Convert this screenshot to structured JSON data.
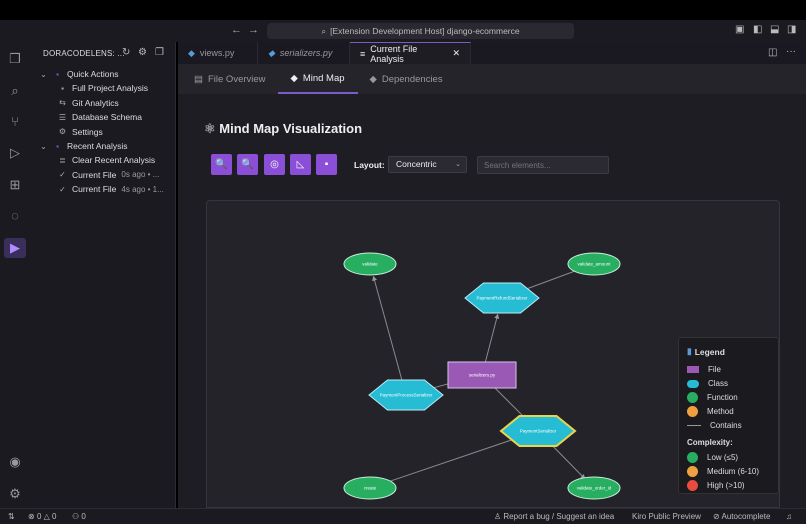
{
  "titlebar": {
    "command_center": "[Extension Development Host] django-ecommerce"
  },
  "sidebar": {
    "header": "DORACODELENS: ...",
    "items": [
      {
        "label": "Quick Actions",
        "icon": "chevron-down-icon",
        "level": 0
      },
      {
        "label": "Full Project Analysis",
        "icon": "chart-icon",
        "level": 1
      },
      {
        "label": "Git Analytics",
        "icon": "git-compare-icon",
        "level": 1
      },
      {
        "label": "Database Schema",
        "icon": "database-icon",
        "level": 1
      },
      {
        "label": "Settings",
        "icon": "gear-icon",
        "level": 1
      },
      {
        "label": "Recent Analysis",
        "icon": "chevron-down-icon",
        "level": 0
      },
      {
        "label": "Clear Recent Analysis",
        "icon": "clear-all-icon",
        "level": 1
      },
      {
        "label": "Current File",
        "meta": "0s ago • ...",
        "icon": "check-icon",
        "level": 1
      },
      {
        "label": "Current File",
        "meta": "4s ago • 1...",
        "icon": "check-icon",
        "level": 1
      }
    ]
  },
  "tabs": [
    {
      "label": "views.py",
      "active": false
    },
    {
      "label": "serializers.py",
      "active": false,
      "italic": true
    },
    {
      "label": "Current File Analysis",
      "active": true
    }
  ],
  "subtabs": [
    {
      "label": "File Overview"
    },
    {
      "label": "Mind Map",
      "active": true
    },
    {
      "label": "Dependencies"
    }
  ],
  "main": {
    "title": "Mind Map Visualization",
    "layout_label": "Layout:",
    "layout_value": "Concentric",
    "search_placeholder": "Search elements..."
  },
  "graph": {
    "nodes": [
      {
        "id": "file",
        "label": "serializers.py",
        "type": "file"
      },
      {
        "id": "prs",
        "label": "PaymentRefundSerializer",
        "type": "class"
      },
      {
        "id": "pps",
        "label": "PaymentProcessSerializer",
        "type": "class"
      },
      {
        "id": "ps",
        "label": "PaymentSerializer",
        "type": "class",
        "selected": true
      },
      {
        "id": "v",
        "label": "validate",
        "type": "function"
      },
      {
        "id": "va",
        "label": "validate_amount",
        "type": "function"
      },
      {
        "id": "c",
        "label": "create",
        "type": "function"
      },
      {
        "id": "vo",
        "label": "validate_order_id",
        "type": "function"
      }
    ],
    "edges": [
      [
        "file",
        "prs"
      ],
      [
        "file",
        "pps"
      ],
      [
        "file",
        "ps"
      ],
      [
        "pps",
        "v"
      ],
      [
        "prs",
        "va"
      ],
      [
        "ps",
        "c"
      ],
      [
        "ps",
        "vo"
      ]
    ]
  },
  "legend": {
    "title": "Legend",
    "items": [
      "File",
      "Class",
      "Function",
      "Method",
      "Contains"
    ],
    "complexity_title": "Complexity:",
    "complexity": [
      "Low (≤5)",
      "Medium (6-10)",
      "High (>10)"
    ],
    "colors": {
      "file": "#9b59b6",
      "class": "#26bcd4",
      "function": "#27ae60",
      "method": "#f0a040",
      "low": "#27ae60",
      "medium": "#f0a040",
      "high": "#e74c3c"
    }
  },
  "status": {
    "errors": "0",
    "warnings": "0",
    "ports": "0",
    "report": "Report a bug / Suggest an idea",
    "preview": "Kiro Public Preview",
    "autocomplete": "Autocomplete"
  }
}
